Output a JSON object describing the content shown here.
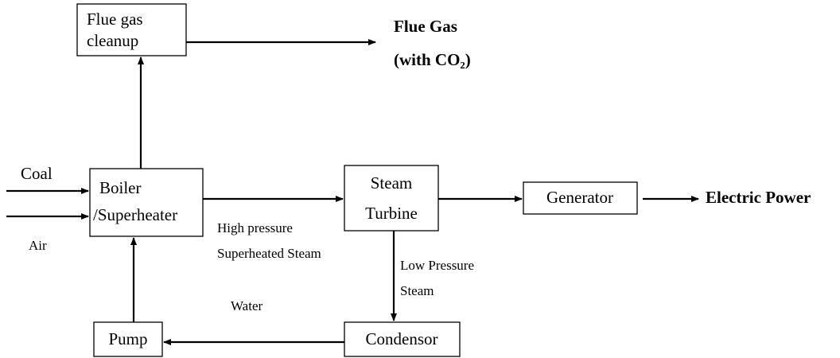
{
  "nodes": [
    {
      "lines": [
        "Flue gas",
        "cleanup"
      ]
    },
    {
      "lines": [
        "Boiler",
        "/Superheater"
      ]
    },
    {
      "lines": [
        "Steam",
        "Turbine"
      ]
    },
    {
      "lines": [
        "Generator"
      ]
    },
    {
      "lines": [
        "Pump"
      ]
    },
    {
      "lines": [
        "Condensor"
      ]
    }
  ],
  "labels": {
    "coal": "Coal",
    "air": "Air",
    "flue_gas": [
      "Flue Gas",
      "(with CO₂)"
    ],
    "high_pressure": [
      "High pressure",
      "Superheated Steam"
    ],
    "low_pressure": [
      "Low Pressure",
      "Steam"
    ],
    "water": "Water",
    "electric_power": "Electric Power"
  }
}
